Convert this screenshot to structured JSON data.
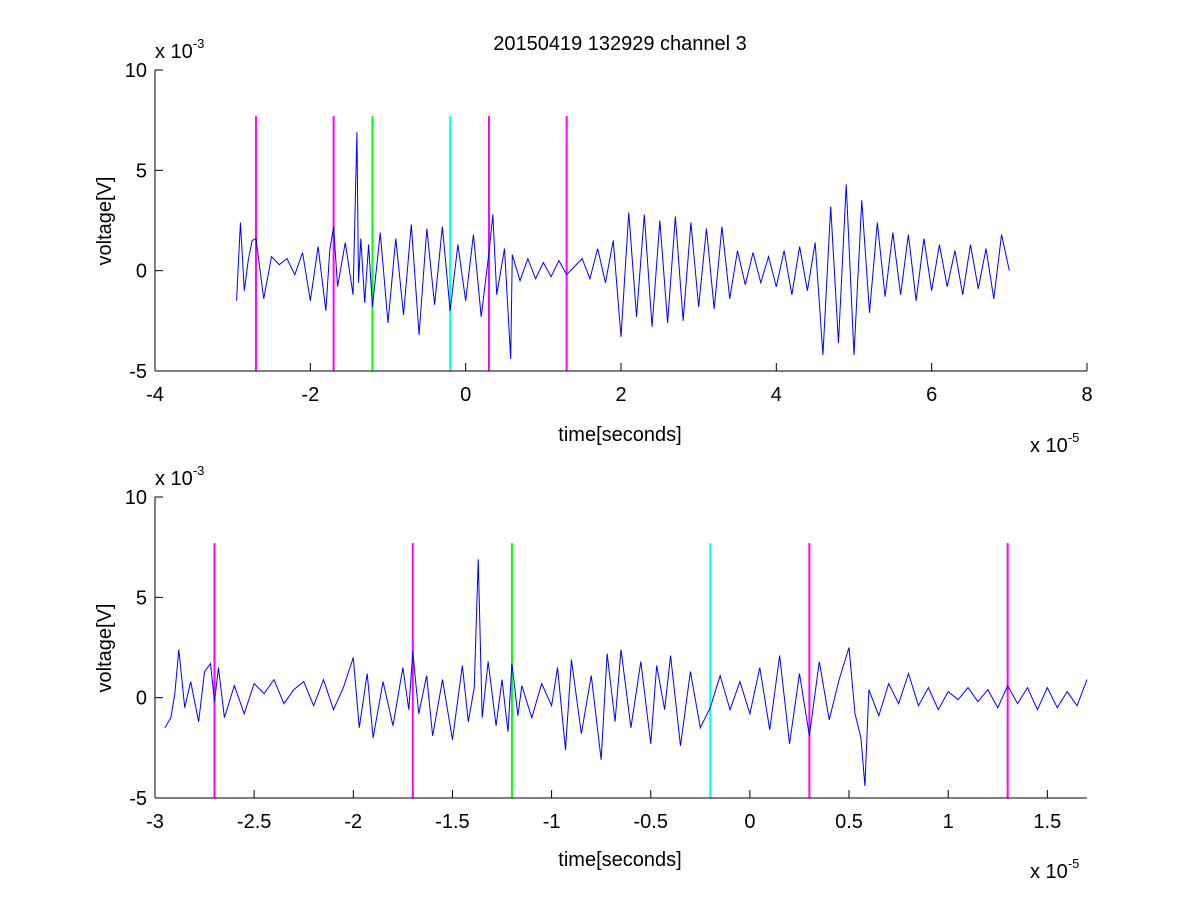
{
  "figure": {
    "title": "20150419 132929 channel 3"
  },
  "chart_data": [
    {
      "type": "line",
      "title": "20150419 132929 channel 3",
      "xlabel": "time[seconds]",
      "ylabel": "voltage[V]",
      "x_exponent_label": "x 10",
      "x_exponent_power": "-5",
      "y_exponent_label": "x 10",
      "y_exponent_power": "-3",
      "xlim": [
        -4,
        8
      ],
      "ylim": [
        -5,
        10
      ],
      "xticks": [
        -4,
        -2,
        0,
        2,
        4,
        6,
        8
      ],
      "xtick_labels": [
        "-4",
        "-2",
        "0",
        "2",
        "4",
        "6",
        "8"
      ],
      "yticks": [
        -5,
        0,
        5,
        10
      ],
      "ytick_labels": [
        "-5",
        "0",
        "5",
        "10"
      ],
      "grid": false,
      "series": [
        {
          "color": "#0000ff",
          "x": [
            -2.95,
            -2.9,
            -2.85,
            -2.8,
            -2.75,
            -2.7,
            -2.6,
            -2.5,
            -2.4,
            -2.3,
            -2.2,
            -2.1,
            -2.0,
            -1.9,
            -1.8,
            -1.75,
            -1.7,
            -1.65,
            -1.55,
            -1.45,
            -1.4,
            -1.38,
            -1.35,
            -1.3,
            -1.25,
            -1.2,
            -1.1,
            -1.0,
            -0.9,
            -0.8,
            -0.7,
            -0.6,
            -0.5,
            -0.4,
            -0.3,
            -0.2,
            -0.1,
            0.0,
            0.1,
            0.2,
            0.3,
            0.35,
            0.4,
            0.5,
            0.58,
            0.6,
            0.7,
            0.8,
            0.9,
            1.0,
            1.1,
            1.2,
            1.3,
            1.4,
            1.5,
            1.6,
            1.7,
            1.8,
            1.9,
            2.0,
            2.1,
            2.2,
            2.3,
            2.4,
            2.5,
            2.6,
            2.7,
            2.8,
            2.9,
            3.0,
            3.1,
            3.2,
            3.3,
            3.4,
            3.5,
            3.6,
            3.7,
            3.8,
            3.9,
            4.0,
            4.1,
            4.2,
            4.3,
            4.4,
            4.5,
            4.6,
            4.7,
            4.8,
            4.9,
            5.0,
            5.1,
            5.2,
            5.3,
            5.4,
            5.5,
            5.6,
            5.7,
            5.8,
            5.9,
            6.0,
            6.1,
            6.2,
            6.3,
            6.4,
            6.5,
            6.6,
            6.7,
            6.8,
            6.9,
            7.0
          ],
          "values": [
            -1.5,
            2.4,
            -1.0,
            0.5,
            1.5,
            1.6,
            -1.4,
            0.7,
            0.3,
            0.6,
            -0.2,
            0.9,
            -1.5,
            1.2,
            -2.0,
            1.0,
            2.2,
            -0.8,
            1.4,
            -1.2,
            6.9,
            -0.6,
            1.6,
            -1.6,
            1.3,
            -1.8,
            1.9,
            -2.6,
            1.6,
            -2.2,
            2.3,
            -3.2,
            2.1,
            -1.7,
            2.2,
            -2.0,
            1.3,
            -1.5,
            1.8,
            -2.3,
            0.9,
            2.8,
            -1.2,
            1.1,
            -4.4,
            0.8,
            -0.5,
            0.6,
            -0.4,
            0.4,
            -0.3,
            0.5,
            -0.2,
            0.2,
            0.6,
            -0.4,
            1.1,
            -0.6,
            1.5,
            -3.3,
            2.9,
            -2.3,
            2.8,
            -2.8,
            2.5,
            -2.6,
            2.7,
            -2.5,
            2.4,
            -1.8,
            2.1,
            -1.9,
            2.2,
            -1.4,
            1.0,
            -0.7,
            0.9,
            -0.6,
            0.7,
            -0.8,
            1.0,
            -1.2,
            1.2,
            -1.0,
            1.4,
            -4.2,
            3.2,
            -3.6,
            4.3,
            -4.2,
            3.5,
            -2.1,
            2.4,
            -1.3,
            1.9,
            -1.2,
            1.8,
            -1.5,
            1.6,
            -1.0,
            1.3,
            -0.8,
            1.0,
            -1.2,
            1.3,
            -0.9,
            1.1,
            -1.4,
            1.8,
            0.0
          ]
        }
      ],
      "vertical_markers": [
        {
          "x": -2.7,
          "color": "#ff00ff"
        },
        {
          "x": -1.7,
          "color": "#ff00ff"
        },
        {
          "x": -1.2,
          "color": "#00ff00"
        },
        {
          "x": -0.2,
          "color": "#00ffff"
        },
        {
          "x": 0.3,
          "color": "#ff00ff"
        },
        {
          "x": 1.3,
          "color": "#ff00ff"
        }
      ],
      "marker_range": [
        -5,
        7.7
      ]
    },
    {
      "type": "line",
      "title": "",
      "xlabel": "time[seconds]",
      "ylabel": "voltage[V]",
      "x_exponent_label": "x 10",
      "x_exponent_power": "-5",
      "y_exponent_label": "x 10",
      "y_exponent_power": "-3",
      "xlim": [
        -3.0,
        1.7
      ],
      "ylim": [
        -5,
        10
      ],
      "xticks": [
        -3,
        -2.5,
        -2,
        -1.5,
        -1,
        -0.5,
        0,
        0.5,
        1,
        1.5
      ],
      "xtick_labels": [
        "-3",
        "-2.5",
        "-2",
        "-1.5",
        "-1",
        "-0.5",
        "0",
        "0.5",
        "1",
        "1.5"
      ],
      "yticks": [
        -5,
        0,
        5,
        10
      ],
      "ytick_labels": [
        "-5",
        "0",
        "5",
        "10"
      ],
      "grid": false,
      "series": [
        {
          "color": "#0000ff",
          "x": [
            -2.95,
            -2.92,
            -2.9,
            -2.88,
            -2.85,
            -2.82,
            -2.78,
            -2.75,
            -2.72,
            -2.7,
            -2.68,
            -2.65,
            -2.6,
            -2.55,
            -2.5,
            -2.45,
            -2.4,
            -2.35,
            -2.3,
            -2.25,
            -2.2,
            -2.15,
            -2.1,
            -2.05,
            -2.0,
            -1.97,
            -1.93,
            -1.9,
            -1.85,
            -1.8,
            -1.75,
            -1.72,
            -1.7,
            -1.67,
            -1.63,
            -1.6,
            -1.55,
            -1.5,
            -1.45,
            -1.42,
            -1.39,
            -1.37,
            -1.35,
            -1.32,
            -1.28,
            -1.25,
            -1.22,
            -1.2,
            -1.17,
            -1.15,
            -1.1,
            -1.05,
            -1.0,
            -0.97,
            -0.93,
            -0.9,
            -0.85,
            -0.8,
            -0.75,
            -0.72,
            -0.68,
            -0.65,
            -0.6,
            -0.55,
            -0.5,
            -0.47,
            -0.43,
            -0.4,
            -0.35,
            -0.3,
            -0.25,
            -0.2,
            -0.15,
            -0.1,
            -0.05,
            0.0,
            0.05,
            0.1,
            0.15,
            0.2,
            0.25,
            0.3,
            0.35,
            0.4,
            0.45,
            0.5,
            0.53,
            0.56,
            0.58,
            0.6,
            0.65,
            0.7,
            0.75,
            0.8,
            0.85,
            0.9,
            0.95,
            1.0,
            1.05,
            1.1,
            1.15,
            1.2,
            1.25,
            1.3,
            1.35,
            1.4,
            1.45,
            1.5,
            1.55,
            1.6,
            1.65,
            1.7
          ],
          "values": [
            -1.5,
            -1.0,
            0.2,
            2.4,
            -0.5,
            0.8,
            -1.2,
            1.3,
            1.7,
            -0.2,
            1.5,
            -1.0,
            0.6,
            -0.8,
            0.7,
            0.2,
            0.9,
            -0.3,
            0.4,
            0.8,
            -0.4,
            0.9,
            -0.6,
            0.5,
            2.0,
            -1.5,
            1.2,
            -2.0,
            0.8,
            -1.4,
            1.5,
            -0.6,
            2.3,
            -0.8,
            1.1,
            -1.9,
            0.9,
            -2.1,
            1.6,
            -1.2,
            0.5,
            6.9,
            -1.0,
            1.8,
            -1.4,
            0.9,
            -1.7,
            1.7,
            -0.9,
            0.6,
            -1.0,
            0.7,
            -0.4,
            1.5,
            -2.6,
            1.9,
            -1.8,
            1.1,
            -3.1,
            2.2,
            -1.2,
            2.4,
            -1.5,
            1.8,
            -2.3,
            1.6,
            -0.6,
            2.1,
            -2.4,
            1.3,
            -1.5,
            -0.5,
            1.1,
            -0.6,
            0.8,
            -0.8,
            1.5,
            -1.6,
            2.1,
            -2.3,
            1.2,
            -1.9,
            1.8,
            -1.1,
            0.9,
            2.5,
            -0.8,
            -2.0,
            -4.4,
            0.4,
            -0.9,
            0.7,
            -0.3,
            1.2,
            -0.4,
            0.5,
            -0.6,
            0.3,
            -0.1,
            0.5,
            -0.2,
            0.4,
            -0.5,
            0.6,
            -0.3,
            0.5,
            -0.6,
            0.5,
            -0.5,
            0.3,
            -0.4,
            0.9
          ]
        }
      ],
      "vertical_markers": [
        {
          "x": -2.7,
          "color": "#ff00ff"
        },
        {
          "x": -1.7,
          "color": "#ff00ff"
        },
        {
          "x": -1.2,
          "color": "#00ff00"
        },
        {
          "x": -0.2,
          "color": "#00ffff"
        },
        {
          "x": 0.3,
          "color": "#ff00ff"
        },
        {
          "x": 1.3,
          "color": "#ff00ff"
        }
      ],
      "marker_range": [
        -5,
        7.7
      ]
    }
  ]
}
